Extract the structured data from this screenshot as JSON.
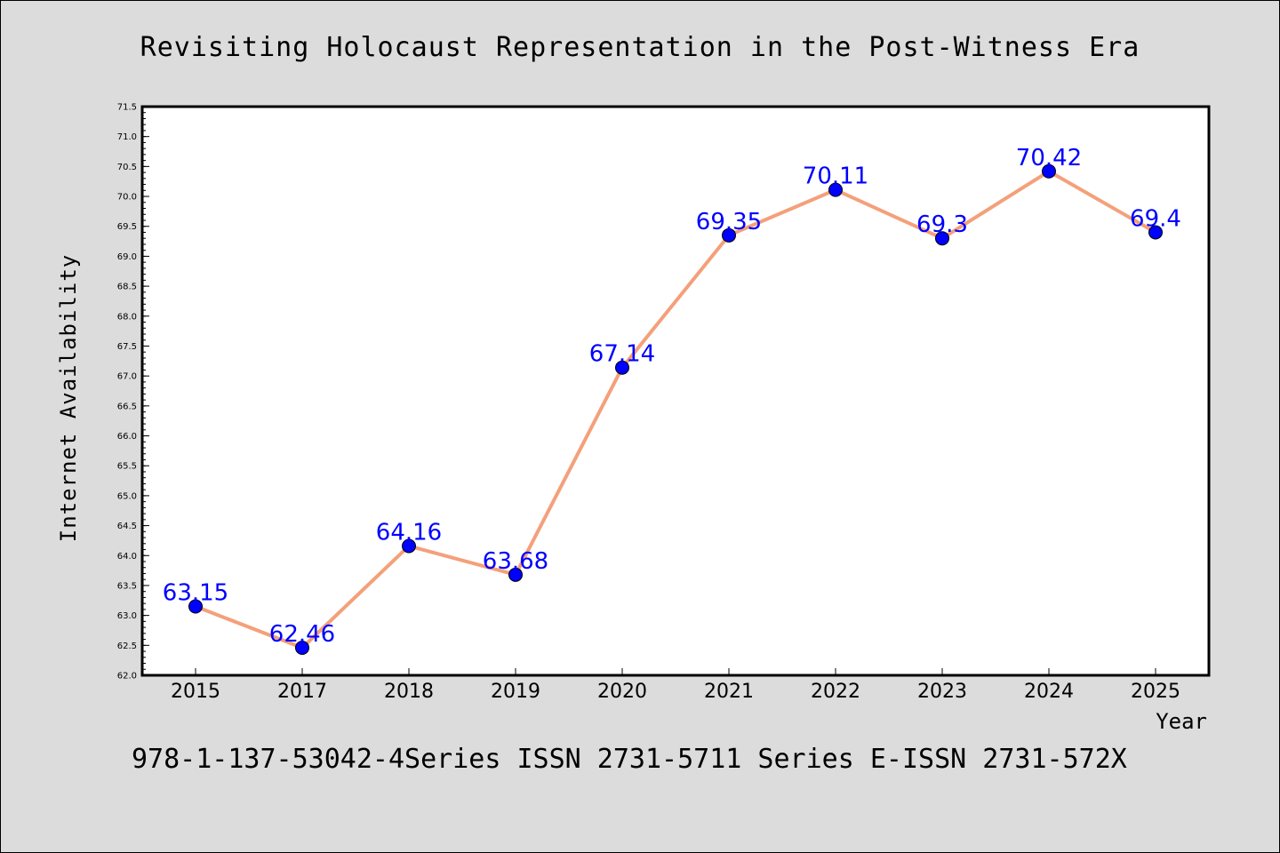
{
  "footer_text": "978-1-137-53042-4Series ISSN 2731-5711 Series E-ISSN 2731-572X",
  "chart_data": {
    "type": "line",
    "title": "Revisiting Holocaust Representation in the Post-Witness Era",
    "xlabel": "Year",
    "ylabel": "Internet Availability",
    "categories": [
      "2015",
      "2017",
      "2018",
      "2019",
      "2020",
      "2021",
      "2022",
      "2023",
      "2024",
      "2025"
    ],
    "series": [
      {
        "values": [
          63.15,
          62.46,
          64.16,
          63.68,
          67.14,
          69.35,
          70.11,
          69.3,
          70.42,
          69.4
        ],
        "labels": [
          "63.15",
          "62.46",
          "64.16",
          "63.68",
          "67.14",
          "69.35",
          "70.11",
          "69.3",
          "70.42",
          "69.4"
        ],
        "line_color": "#f4a07a",
        "marker_color": "#0000ff"
      }
    ],
    "ylim": [
      62.0,
      71.5
    ],
    "yticks": [
      "62.0",
      "62.5",
      "63.0",
      "63.5",
      "64.0",
      "64.5",
      "65.0",
      "65.5",
      "66.0",
      "66.5",
      "67.0",
      "67.5",
      "68.0",
      "68.5",
      "69.0",
      "69.5",
      "70.0",
      "70.5",
      "71.0",
      "71.5"
    ],
    "grid": false,
    "legend": false
  }
}
